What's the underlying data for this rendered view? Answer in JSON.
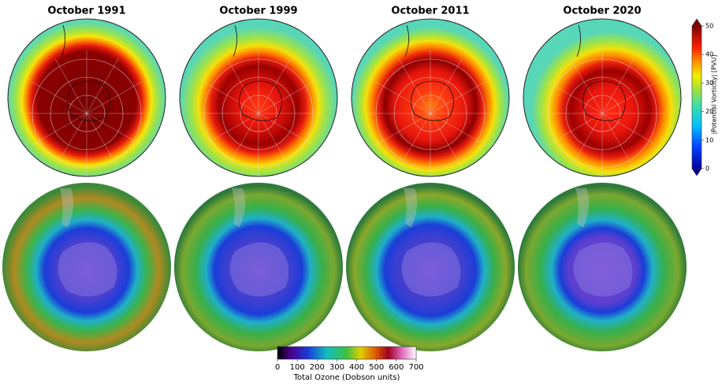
{
  "panels": [
    {
      "title": "October 1991"
    },
    {
      "title": "October 1999"
    },
    {
      "title": "October 2011"
    },
    {
      "title": "October 2020"
    }
  ],
  "pv_colorbar": {
    "label": "|Potential Vorticity| [PVU]",
    "ticks": [
      0,
      10,
      20,
      30,
      40,
      50
    ]
  },
  "ozone_colorbar": {
    "label": "Total Ozone (Dobson units)",
    "ticks": [
      0,
      100,
      200,
      300,
      400,
      500,
      600,
      700
    ]
  }
}
